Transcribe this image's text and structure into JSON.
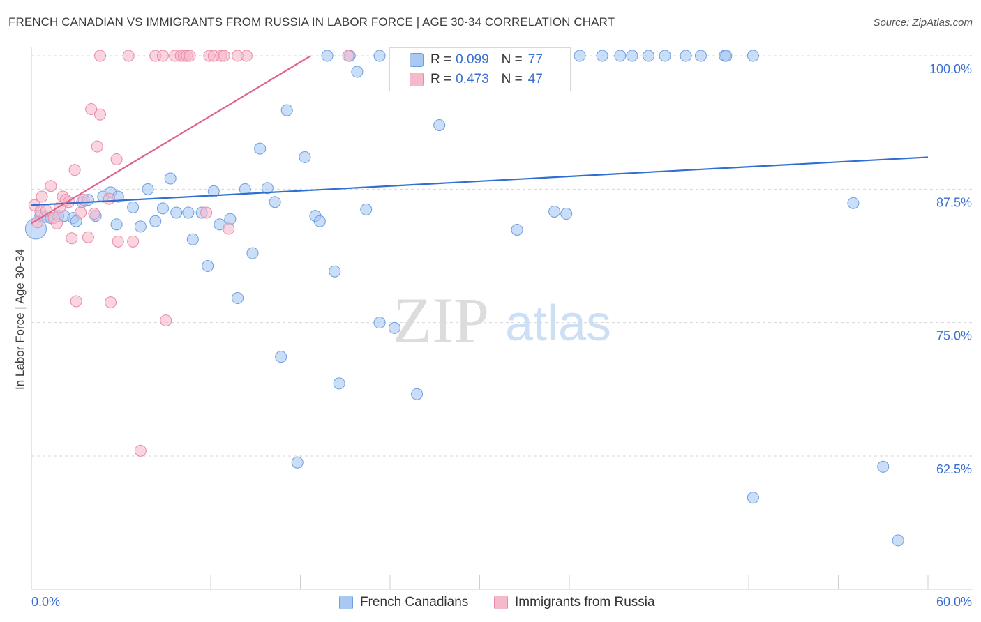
{
  "title": "FRENCH CANADIAN VS IMMIGRANTS FROM RUSSIA IN LABOR FORCE | AGE 30-34 CORRELATION CHART",
  "source": "Source: ZipAtlas.com",
  "watermark": {
    "zip": "ZIP",
    "atlas": "atlas"
  },
  "legend": {
    "series1": {
      "r_label": "R =",
      "r_value": "0.099",
      "n_label": "N =",
      "n_value": "77"
    },
    "series2": {
      "r_label": "R =",
      "r_value": "0.473",
      "n_label": "N =",
      "n_value": "47"
    }
  },
  "colors": {
    "blue_fill": "#a9c8f2",
    "blue_stroke": "#6d9de0",
    "blue_line": "#2f6fd0",
    "pink_fill": "#f6b9cb",
    "pink_stroke": "#e88aa6",
    "pink_line": "#e0618f",
    "tick_label": "#3a6fd0",
    "grid": "#d6d6d6"
  },
  "chart_data": {
    "type": "scatter",
    "title": "FRENCH CANADIAN VS IMMIGRANTS FROM RUSSIA IN LABOR FORCE | AGE 30-34 CORRELATION CHART",
    "xlabel": "",
    "ylabel": "In Labor Force | Age 30-34",
    "xlim": [
      0,
      60
    ],
    "ylim": [
      50,
      100
    ],
    "x_tick_labels": [
      "0.0%",
      "60.0%"
    ],
    "y_ticks": [
      62.5,
      75.0,
      87.5,
      100.0
    ],
    "y_tick_labels": [
      "62.5%",
      "75.0%",
      "87.5%",
      "100.0%"
    ],
    "grid": "horizontal dashed",
    "legend_position": "bottom",
    "series": [
      {
        "name": "French Canadians",
        "color": "#a9c8f2",
        "r": 0.099,
        "n": 77,
        "trend": [
          [
            0.0,
            86.0
          ],
          [
            60.0,
            90.5
          ]
        ],
        "points": [
          [
            0.3,
            83.8
          ],
          [
            0.6,
            85.0
          ],
          [
            0.9,
            84.9
          ],
          [
            1.3,
            84.8
          ],
          [
            1.8,
            85.0
          ],
          [
            2.2,
            85.0
          ],
          [
            2.8,
            84.8
          ],
          [
            3.0,
            84.5
          ],
          [
            3.4,
            86.3
          ],
          [
            3.8,
            86.5
          ],
          [
            4.3,
            85.0
          ],
          [
            4.8,
            86.8
          ],
          [
            5.3,
            87.2
          ],
          [
            5.8,
            86.8
          ],
          [
            5.7,
            84.2
          ],
          [
            6.8,
            85.8
          ],
          [
            7.3,
            84.0
          ],
          [
            7.8,
            87.5
          ],
          [
            8.3,
            84.5
          ],
          [
            8.8,
            85.7
          ],
          [
            9.3,
            88.5
          ],
          [
            9.7,
            85.3
          ],
          [
            10.5,
            85.3
          ],
          [
            10.8,
            82.8
          ],
          [
            11.4,
            85.3
          ],
          [
            11.8,
            80.3
          ],
          [
            12.2,
            87.3
          ],
          [
            12.6,
            84.2
          ],
          [
            13.3,
            84.7
          ],
          [
            13.8,
            77.3
          ],
          [
            14.3,
            87.5
          ],
          [
            14.8,
            81.5
          ],
          [
            15.3,
            91.3
          ],
          [
            15.8,
            87.6
          ],
          [
            16.3,
            86.3
          ],
          [
            16.7,
            71.8
          ],
          [
            17.1,
            94.9
          ],
          [
            17.8,
            61.9
          ],
          [
            18.3,
            90.5
          ],
          [
            19.0,
            85.0
          ],
          [
            19.3,
            84.5
          ],
          [
            19.8,
            100.0
          ],
          [
            20.3,
            79.8
          ],
          [
            20.6,
            69.3
          ],
          [
            21.3,
            100.0
          ],
          [
            21.8,
            98.5
          ],
          [
            22.4,
            85.6
          ],
          [
            23.3,
            100.0
          ],
          [
            23.3,
            75.0
          ],
          [
            24.3,
            74.5
          ],
          [
            25.0,
            100.0
          ],
          [
            25.8,
            68.3
          ],
          [
            26.8,
            100.0
          ],
          [
            27.3,
            93.5
          ],
          [
            28.8,
            100.0
          ],
          [
            29.8,
            100.0
          ],
          [
            32.0,
            100.0
          ],
          [
            32.5,
            83.7
          ],
          [
            34.0,
            100.0
          ],
          [
            35.0,
            85.4
          ],
          [
            35.8,
            85.2
          ],
          [
            36.7,
            100.0
          ],
          [
            38.2,
            100.0
          ],
          [
            39.4,
            100.0
          ],
          [
            40.2,
            100.0
          ],
          [
            41.3,
            100.0
          ],
          [
            42.4,
            100.0
          ],
          [
            43.8,
            100.0
          ],
          [
            44.8,
            100.0
          ],
          [
            46.4,
            100.0
          ],
          [
            46.5,
            100.0
          ],
          [
            48.3,
            100.0
          ],
          [
            48.3,
            58.6
          ],
          [
            55.0,
            86.2
          ],
          [
            57.0,
            61.5
          ],
          [
            58.0,
            54.6
          ],
          [
            30.5,
            100.0
          ]
        ]
      },
      {
        "name": "Immigrants from Russia",
        "color": "#f6b9cb",
        "r": 0.473,
        "n": 47,
        "trend": [
          [
            0.0,
            84.3
          ],
          [
            18.7,
            100.0
          ]
        ],
        "points": [
          [
            0.2,
            86.0
          ],
          [
            0.4,
            84.4
          ],
          [
            0.6,
            85.4
          ],
          [
            0.7,
            86.8
          ],
          [
            1.0,
            85.5
          ],
          [
            1.3,
            87.8
          ],
          [
            1.5,
            84.8
          ],
          [
            1.7,
            84.3
          ],
          [
            1.9,
            85.8
          ],
          [
            2.1,
            86.8
          ],
          [
            2.3,
            86.5
          ],
          [
            2.5,
            86.3
          ],
          [
            2.7,
            82.9
          ],
          [
            2.9,
            89.3
          ],
          [
            3.0,
            77.0
          ],
          [
            3.3,
            85.3
          ],
          [
            3.5,
            86.5
          ],
          [
            3.8,
            83.0
          ],
          [
            4.0,
            95.0
          ],
          [
            4.2,
            85.2
          ],
          [
            4.4,
            91.5
          ],
          [
            4.6,
            94.5
          ],
          [
            4.6,
            100.0
          ],
          [
            5.2,
            86.6
          ],
          [
            5.3,
            76.9
          ],
          [
            5.7,
            90.3
          ],
          [
            5.8,
            82.6
          ],
          [
            6.5,
            100.0
          ],
          [
            6.8,
            82.6
          ],
          [
            7.3,
            63.0
          ],
          [
            8.3,
            100.0
          ],
          [
            8.8,
            100.0
          ],
          [
            9.0,
            75.2
          ],
          [
            9.6,
            100.0
          ],
          [
            10.0,
            100.0
          ],
          [
            10.2,
            100.0
          ],
          [
            10.4,
            100.0
          ],
          [
            10.6,
            100.0
          ],
          [
            11.7,
            85.3
          ],
          [
            11.9,
            100.0
          ],
          [
            12.2,
            100.0
          ],
          [
            12.7,
            100.0
          ],
          [
            12.9,
            100.0
          ],
          [
            13.2,
            83.8
          ],
          [
            13.8,
            100.0
          ],
          [
            14.4,
            100.0
          ],
          [
            21.2,
            100.0
          ]
        ]
      }
    ]
  }
}
